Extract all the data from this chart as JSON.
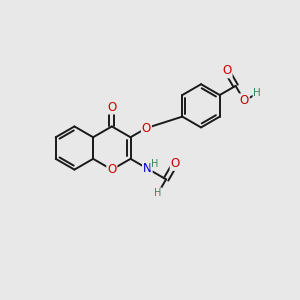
{
  "bg_color": "#e8e8e8",
  "bond_color": "#1a1a1a",
  "o_color": "#cc0000",
  "n_color": "#0000cc",
  "h_color": "#2e8b57",
  "lw": 1.4,
  "fs": 8.5,
  "fig_size": [
    3.0,
    3.0
  ],
  "dpi": 100,
  "xlim": [
    0.0,
    3.0
  ],
  "ylim": [
    0.0,
    3.0
  ]
}
